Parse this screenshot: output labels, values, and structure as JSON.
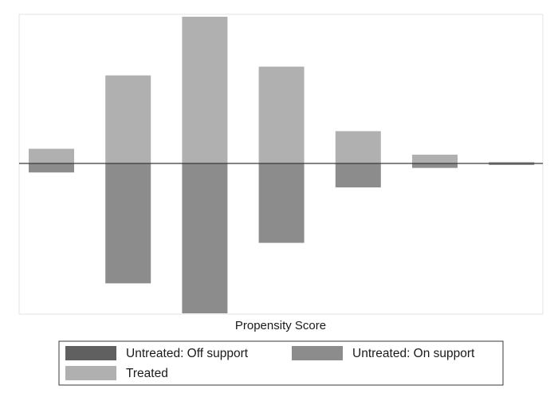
{
  "chart_data": {
    "type": "bar",
    "subtype": "mirrored-histogram",
    "title": "",
    "xlabel": "Propensity Score",
    "ylabel": "",
    "x_bins": [
      1,
      2,
      3,
      4,
      5,
      6,
      7
    ],
    "ylim": [
      -100,
      100
    ],
    "grid": false,
    "axis_tick_labels": "none",
    "legend_position": "bottom",
    "series": [
      {
        "name": "Treated",
        "direction": "up",
        "values": [
          10,
          60,
          100,
          66,
          22,
          6,
          1
        ],
        "color": "#b0b0b0"
      },
      {
        "name": "Untreated: On support",
        "direction": "down",
        "values": [
          6,
          80,
          100,
          53,
          16,
          3,
          1
        ],
        "color": "#8c8c8c"
      },
      {
        "name": "Untreated: Off support",
        "direction": "down",
        "values": [
          0,
          0,
          0,
          0,
          0,
          0,
          0
        ],
        "color": "#606060"
      }
    ],
    "legend": [
      {
        "label": "Untreated: Off support",
        "color": "#606060"
      },
      {
        "label": "Untreated: On support",
        "color": "#8c8c8c"
      },
      {
        "label": "Treated",
        "color": "#b0b0b0"
      }
    ]
  }
}
